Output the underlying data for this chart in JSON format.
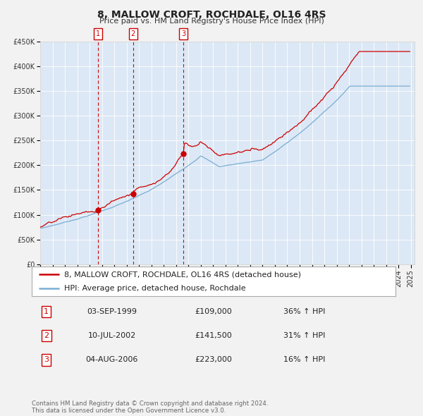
{
  "title": "8, MALLOW CROFT, ROCHDALE, OL16 4RS",
  "subtitle": "Price paid vs. HM Land Registry's House Price Index (HPI)",
  "property_label": "8, MALLOW CROFT, ROCHDALE, OL16 4RS (detached house)",
  "hpi_label": "HPI: Average price, detached house, Rochdale",
  "transactions": [
    {
      "num": 1,
      "date": "03-SEP-1999",
      "price": 109000,
      "pct": "36%",
      "year_x": 1999.67
    },
    {
      "num": 2,
      "date": "10-JUL-2002",
      "price": 141500,
      "pct": "31%",
      "year_x": 2002.52
    },
    {
      "num": 3,
      "date": "04-AUG-2006",
      "price": 223000,
      "pct": "16%",
      "year_x": 2006.59
    }
  ],
  "ylim": [
    0,
    450000
  ],
  "yticks": [
    0,
    50000,
    100000,
    150000,
    200000,
    250000,
    300000,
    350000,
    400000,
    450000
  ],
  "xlim_start": 1995.0,
  "xlim_end": 2025.3,
  "property_color": "#cc0000",
  "hpi_color": "#7aadd4",
  "vline_color": "#cc0000",
  "plot_bg_color": "#dce8f5",
  "fig_bg_color": "#f2f2f2",
  "legend_bg": "#ffffff",
  "footer_text": "Contains HM Land Registry data © Crown copyright and database right 2024.\nThis data is licensed under the Open Government Licence v3.0.",
  "title_fontsize": 10,
  "subtitle_fontsize": 8,
  "tick_fontsize": 7,
  "legend_fontsize": 8,
  "table_fontsize": 8
}
